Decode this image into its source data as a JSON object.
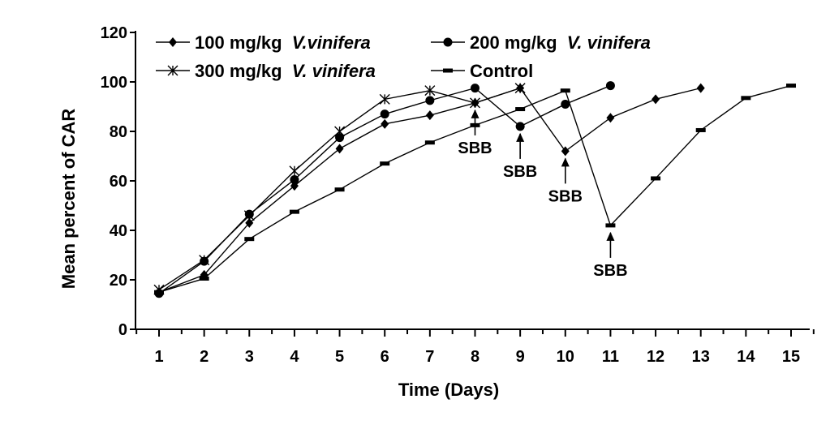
{
  "chart_data": {
    "type": "line",
    "xlabel": "Time (Days)",
    "ylabel": "Mean percent of CAR",
    "xlim": [
      1,
      15
    ],
    "ylim": [
      0,
      120
    ],
    "x_ticks": [
      "1",
      "2",
      "3",
      "4",
      "5",
      "6",
      "7",
      "8",
      "9",
      "10",
      "11",
      "12",
      "13",
      "14",
      "15"
    ],
    "y_ticks": [
      "0",
      "20",
      "40",
      "60",
      "80",
      "100",
      "120"
    ],
    "grid": false,
    "legend_position": "top-left",
    "series": [
      {
        "name_prefix": "100 mg/kg ",
        "name_italic": "V.vinifera",
        "marker": "diamond",
        "color": "#000000",
        "x": [
          1,
          2,
          3,
          4,
          5,
          6,
          7,
          8,
          9,
          10,
          11,
          12,
          13
        ],
        "values": [
          15,
          22,
          43,
          58,
          73,
          83,
          86.5,
          91.5,
          97.5,
          72,
          85.5,
          93,
          97.5
        ]
      },
      {
        "name_prefix": "200 mg/kg ",
        "name_italic": "V. vinifera",
        "marker": "circle",
        "color": "#000000",
        "x": [
          1,
          2,
          3,
          4,
          5,
          6,
          7,
          8,
          9,
          10,
          11
        ],
        "values": [
          14.5,
          27.5,
          46.5,
          60.5,
          77.5,
          87,
          92.5,
          97.5,
          82,
          91,
          98.5
        ]
      },
      {
        "name_prefix": "300 mg/kg ",
        "name_italic": "V. vinifera",
        "marker": "x",
        "color": "#000000",
        "x": [
          1,
          2,
          3,
          4,
          5,
          6,
          7,
          8,
          9
        ],
        "values": [
          16,
          28,
          46,
          64,
          80,
          93,
          96.5,
          91.5,
          97.5
        ]
      },
      {
        "name_prefix": "Control",
        "name_italic": "",
        "marker": "dash",
        "color": "#000000",
        "x": [
          1,
          2,
          3,
          4,
          5,
          6,
          7,
          8,
          9,
          10,
          11,
          12,
          13,
          14,
          15
        ],
        "values": [
          15,
          20.5,
          36.5,
          47.5,
          56.5,
          67,
          75.5,
          82.5,
          89,
          96.5,
          42,
          61,
          80.5,
          93.5,
          98.5
        ]
      }
    ],
    "annotations": [
      {
        "text": "SBB",
        "x": 8,
        "y": 91.5
      },
      {
        "text": "SBB",
        "x": 9,
        "y": 82
      },
      {
        "text": "SBB",
        "x": 10,
        "y": 72
      },
      {
        "text": "SBB",
        "x": 11,
        "y": 42
      }
    ]
  }
}
